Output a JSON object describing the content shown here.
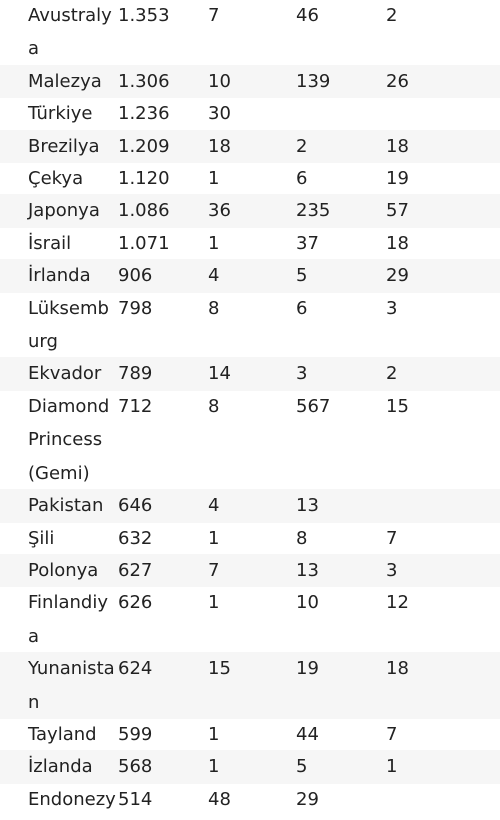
{
  "rows": [
    {
      "country": "Avustralya",
      "cases": "1.353",
      "deaths": "7",
      "recovered": "46",
      "critical": "2",
      "lines": 2
    },
    {
      "country": "Malezya",
      "cases": "1.306",
      "deaths": "10",
      "recovered": "139",
      "critical": "26",
      "lines": 1
    },
    {
      "country": "Türkiye",
      "cases": "1.236",
      "deaths": "30",
      "recovered": "",
      "critical": "",
      "lines": 1
    },
    {
      "country": "Brezilya",
      "cases": "1.209",
      "deaths": "18",
      "recovered": "2",
      "critical": "18",
      "lines": 1
    },
    {
      "country": "Çekya",
      "cases": "1.120",
      "deaths": "1",
      "recovered": "6",
      "critical": "19",
      "lines": 1
    },
    {
      "country": "Japonya",
      "cases": "1.086",
      "deaths": "36",
      "recovered": "235",
      "critical": "57",
      "lines": 1
    },
    {
      "country": "İsrail",
      "cases": "1.071",
      "deaths": "1",
      "recovered": "37",
      "critical": "18",
      "lines": 1
    },
    {
      "country": "İrlanda",
      "cases": "906",
      "deaths": "4",
      "recovered": "5",
      "critical": "29",
      "lines": 1
    },
    {
      "country": "Lüksemburg",
      "cases": "798",
      "deaths": "8",
      "recovered": "6",
      "critical": "3",
      "lines": 2
    },
    {
      "country": "Ekvador",
      "cases": "789",
      "deaths": "14",
      "recovered": "3",
      "critical": "2",
      "lines": 1
    },
    {
      "country": "Diamond Princess (Gemi)",
      "cases": "712",
      "deaths": "8",
      "recovered": "567",
      "critical": "15",
      "lines": 3
    },
    {
      "country": "Pakistan",
      "cases": "646",
      "deaths": "4",
      "recovered": "13",
      "critical": "",
      "lines": 1
    },
    {
      "country": "Şili",
      "cases": "632",
      "deaths": "1",
      "recovered": "8",
      "critical": "7",
      "lines": 1
    },
    {
      "country": "Polonya",
      "cases": "627",
      "deaths": "7",
      "recovered": "13",
      "critical": "3",
      "lines": 1
    },
    {
      "country": "Finlandiya",
      "cases": "626",
      "deaths": "1",
      "recovered": "10",
      "critical": "12",
      "lines": 1
    },
    {
      "country": "Yunanistan",
      "cases": "624",
      "deaths": "15",
      "recovered": "19",
      "critical": "18",
      "lines": 2
    },
    {
      "country": "Tayland",
      "cases": "599",
      "deaths": "1",
      "recovered": "44",
      "critical": "7",
      "lines": 1
    },
    {
      "country": "İzlanda",
      "cases": "568",
      "deaths": "1",
      "recovered": "5",
      "critical": "1",
      "lines": 1
    },
    {
      "country": "Endonezya",
      "cases": "514",
      "deaths": "48",
      "recovered": "29",
      "critical": "",
      "lines": 2
    }
  ]
}
